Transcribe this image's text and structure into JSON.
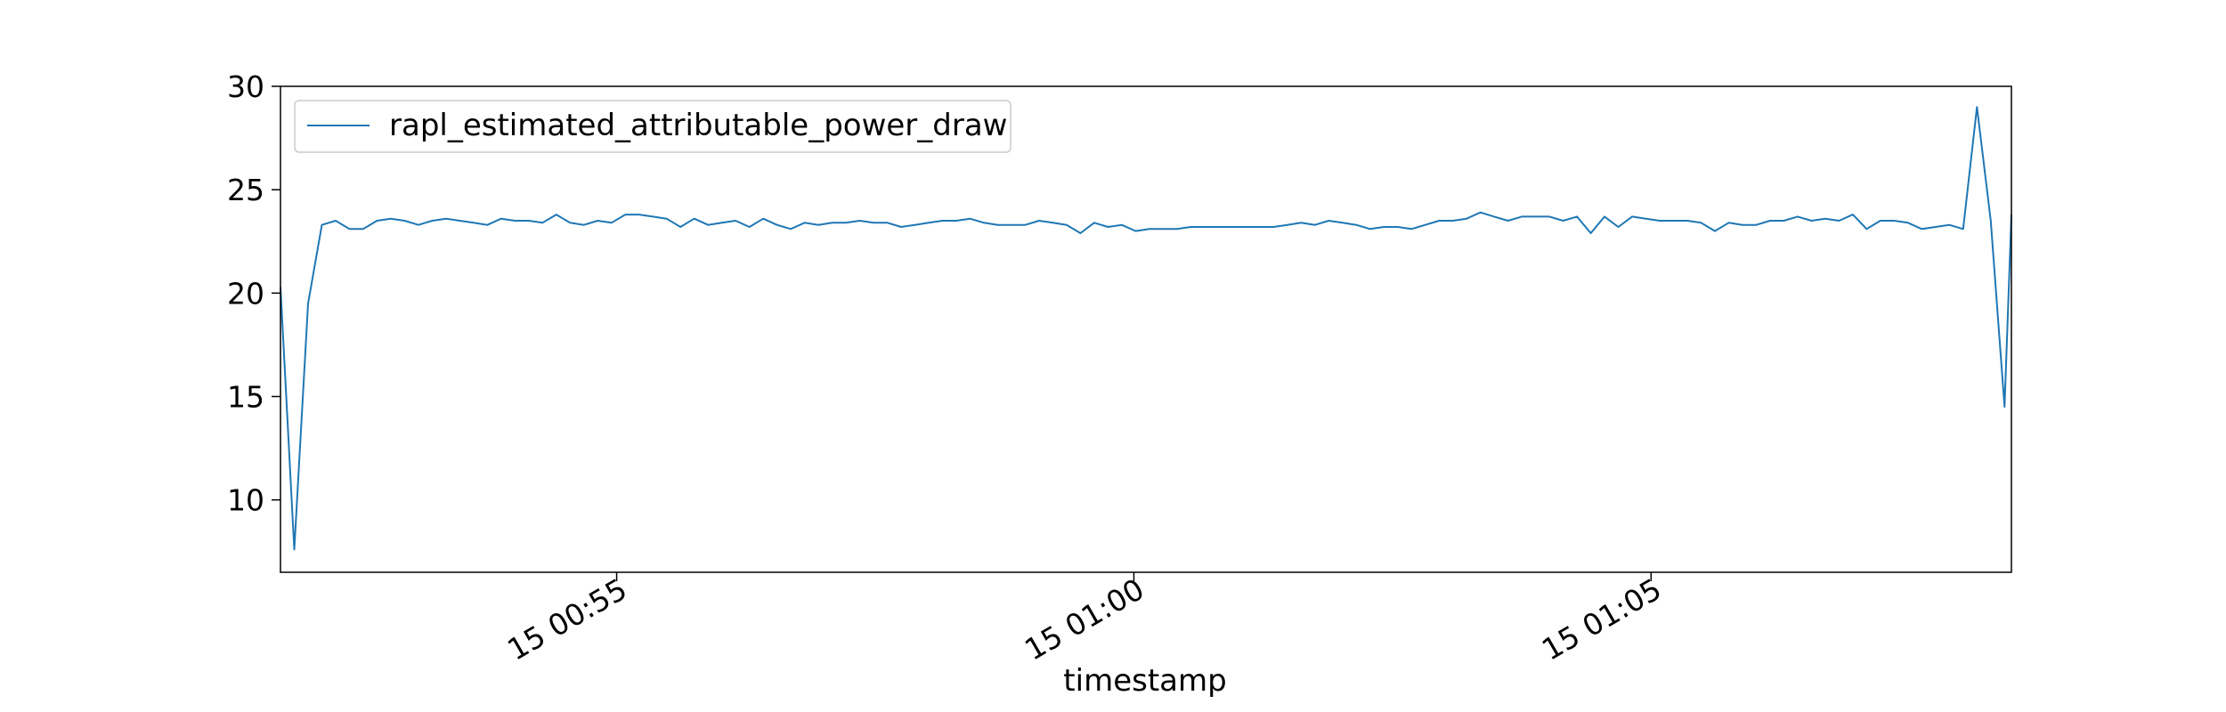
{
  "chart_data": {
    "type": "line",
    "title": "",
    "xlabel": "timestamp",
    "ylabel": "",
    "xlim": [
      "00:51:43",
      "01:08:27"
    ],
    "ylim": [
      6.5,
      30
    ],
    "x_ticks": [
      {
        "time": "00:54:58",
        "label": "15 00:55"
      },
      {
        "time": "00:59:58",
        "label": "15 01:00"
      },
      {
        "time": "01:04:58",
        "label": "15 01:05"
      }
    ],
    "y_ticks": [
      {
        "value": 10,
        "label": "10"
      },
      {
        "value": 15,
        "label": "15"
      },
      {
        "value": 20,
        "label": "20"
      },
      {
        "value": 25,
        "label": "25"
      },
      {
        "value": 30,
        "label": "30"
      }
    ],
    "legend": {
      "position": "upper-left",
      "frame": true
    },
    "grid": false,
    "series": [
      {
        "name": "rapl_estimated_attributable_power_draw",
        "color": "#1f77b4",
        "x": [
          "00:51:43",
          "00:51:51",
          "00:51:59",
          "00:52:07",
          "00:52:15",
          "00:52:23",
          "00:52:31",
          "00:52:39",
          "00:52:47",
          "00:52:55",
          "00:53:03",
          "00:53:11",
          "00:53:19",
          "00:53:27",
          "00:53:35",
          "00:53:43",
          "00:53:51",
          "00:53:59",
          "00:54:07",
          "00:54:15",
          "00:54:23",
          "00:54:31",
          "00:54:39",
          "00:54:47",
          "00:54:55",
          "00:55:03",
          "00:55:11",
          "00:55:19",
          "00:55:27",
          "00:55:35",
          "00:55:43",
          "00:55:51",
          "00:55:59",
          "00:56:07",
          "00:56:15",
          "00:56:23",
          "00:56:31",
          "00:56:39",
          "00:56:47",
          "00:56:55",
          "00:57:03",
          "00:57:11",
          "00:57:19",
          "00:57:27",
          "00:57:35",
          "00:57:43",
          "00:57:51",
          "00:57:59",
          "00:58:07",
          "00:58:15",
          "00:58:23",
          "00:58:31",
          "00:58:39",
          "00:58:47",
          "00:58:55",
          "00:59:03",
          "00:59:11",
          "00:59:19",
          "00:59:27",
          "00:59:35",
          "00:59:43",
          "00:59:51",
          "00:59:59",
          "01:00:07",
          "01:00:15",
          "01:00:23",
          "01:00:31",
          "01:00:39",
          "01:00:47",
          "01:00:55",
          "01:01:03",
          "01:01:11",
          "01:01:19",
          "01:01:27",
          "01:01:35",
          "01:01:43",
          "01:01:51",
          "01:01:59",
          "01:02:07",
          "01:02:15",
          "01:02:23",
          "01:02:31",
          "01:02:39",
          "01:02:47",
          "01:02:55",
          "01:03:03",
          "01:03:11",
          "01:03:19",
          "01:03:27",
          "01:03:35",
          "01:03:43",
          "01:03:51",
          "01:03:59",
          "01:04:07",
          "01:04:15",
          "01:04:23",
          "01:04:31",
          "01:04:39",
          "01:04:47",
          "01:04:55",
          "01:05:03",
          "01:05:11",
          "01:05:19",
          "01:05:27",
          "01:05:35",
          "01:05:43",
          "01:05:51",
          "01:05:59",
          "01:06:07",
          "01:06:15",
          "01:06:23",
          "01:06:31",
          "01:06:39",
          "01:06:47",
          "01:06:55",
          "01:07:03",
          "01:07:11",
          "01:07:19",
          "01:07:27",
          "01:07:35",
          "01:07:43",
          "01:07:51",
          "01:07:59",
          "01:08:07",
          "01:08:15",
          "01:08:23",
          "01:08:27"
        ],
        "y": [
          20.3,
          7.6,
          19.5,
          23.3,
          23.5,
          23.1,
          23.1,
          23.5,
          23.6,
          23.5,
          23.3,
          23.5,
          23.6,
          23.5,
          23.4,
          23.3,
          23.6,
          23.5,
          23.5,
          23.4,
          23.8,
          23.4,
          23.3,
          23.5,
          23.4,
          23.8,
          23.8,
          23.7,
          23.6,
          23.2,
          23.6,
          23.3,
          23.4,
          23.5,
          23.2,
          23.6,
          23.3,
          23.1,
          23.4,
          23.3,
          23.4,
          23.4,
          23.5,
          23.4,
          23.4,
          23.2,
          23.3,
          23.4,
          23.5,
          23.5,
          23.6,
          23.4,
          23.3,
          23.3,
          23.3,
          23.5,
          23.4,
          23.3,
          22.9,
          23.4,
          23.2,
          23.3,
          23.0,
          23.1,
          23.1,
          23.1,
          23.2,
          23.2,
          23.2,
          23.2,
          23.2,
          23.2,
          23.2,
          23.3,
          23.4,
          23.3,
          23.5,
          23.4,
          23.3,
          23.1,
          23.2,
          23.2,
          23.1,
          23.3,
          23.5,
          23.5,
          23.6,
          23.9,
          23.7,
          23.5,
          23.7,
          23.7,
          23.7,
          23.5,
          23.7,
          22.9,
          23.7,
          23.2,
          23.7,
          23.6,
          23.5,
          23.5,
          23.5,
          23.4,
          23.0,
          23.4,
          23.3,
          23.3,
          23.5,
          23.5,
          23.7,
          23.5,
          23.6,
          23.5,
          23.8,
          23.1,
          23.5,
          23.5,
          23.4,
          23.1,
          23.2,
          23.3,
          23.1,
          29.0,
          23.5,
          14.5,
          23.8
        ]
      }
    ]
  }
}
